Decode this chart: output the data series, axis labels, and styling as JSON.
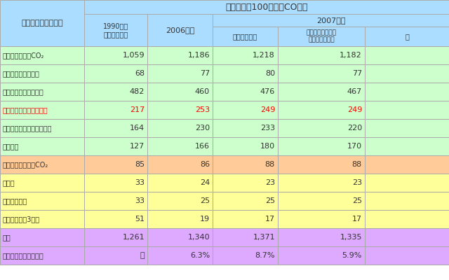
{
  "title": "排出量　（100万トンCO２）",
  "header_label": "温室効果ガスの種類",
  "col1990": "1990年度\n（基準年度）",
  "col2006": "2006年度",
  "col2007": "2007年度",
  "col_jisseki": "実績（速報）",
  "col_genpatsu": "原発停止等の影響\nを除く（試算）",
  "col_shisan": "試",
  "rows": [
    {
      "label": "エネルギー起源CO₂",
      "values": [
        "1,059",
        "1,186",
        "1,218",
        "1,182"
      ],
      "bg": "#ccffcc",
      "tc": "#333333"
    },
    {
      "label": "エネルギー転換部門",
      "values": [
        "68",
        "77",
        "80",
        "77"
      ],
      "bg": "#ccffcc",
      "tc": "#333333"
    },
    {
      "label": "産業部門（工場など）",
      "values": [
        "482",
        "460",
        "476",
        "467"
      ],
      "bg": "#ccffcc",
      "tc": "#333333"
    },
    {
      "label": "運輸部門（自動車など）",
      "values": [
        "217",
        "253",
        "249",
        "249"
      ],
      "bg": "#ccffcc",
      "tc": "#ff0000"
    },
    {
      "label": "業務部門（オフィスなど）",
      "values": [
        "164",
        "230",
        "233",
        "220"
      ],
      "bg": "#ccffcc",
      "tc": "#333333"
    },
    {
      "label": "家庭部門",
      "values": [
        "127",
        "166",
        "180",
        "170"
      ],
      "bg": "#ccffcc",
      "tc": "#333333"
    },
    {
      "label": "非エネルギー起源CO₂",
      "values": [
        "85",
        "86",
        "88",
        "88"
      ],
      "bg": "#ffcc99",
      "tc": "#333333"
    },
    {
      "label": "メタン",
      "values": [
        "33",
        "24",
        "23",
        "23"
      ],
      "bg": "#ffff99",
      "tc": "#333333"
    },
    {
      "label": "一酸化二窒素",
      "values": [
        "33",
        "25",
        "25",
        "25"
      ],
      "bg": "#ffff99",
      "tc": "#333333"
    },
    {
      "label": "代替フロン答3ガス",
      "values": [
        "51",
        "19",
        "17",
        "17"
      ],
      "bg": "#ffff99",
      "tc": "#333333"
    },
    {
      "label": "合計",
      "values": [
        "1,261",
        "1,340",
        "1,371",
        "1,335"
      ],
      "bg": "#ddaaff",
      "tc": "#333333"
    },
    {
      "label": "（基準年度比の増減）",
      "values": [
        "－",
        "6.3%",
        "8.7%",
        "5.9%"
      ],
      "bg": "#ddaaff",
      "tc": "#333333"
    }
  ],
  "hbg": "#aaddff",
  "border": "#aaaaaa",
  "fig_w": 6.4,
  "fig_h": 4.0,
  "dpi": 100
}
